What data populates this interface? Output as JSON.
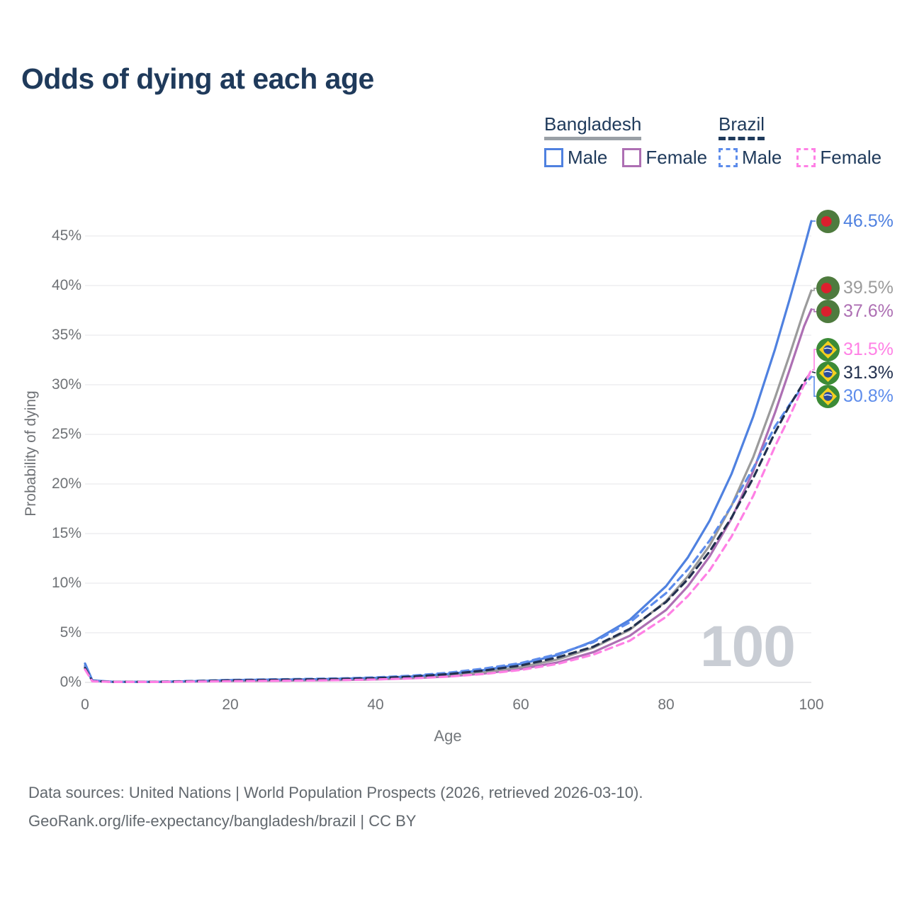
{
  "title": "Odds of dying at each age",
  "legend": {
    "groups": [
      {
        "label": "Bangladesh",
        "line_style": "solid",
        "underline_color": "#9aa0a6",
        "items": [
          {
            "label": "Male",
            "color": "#4f81e0",
            "dashed": false
          },
          {
            "label": "Female",
            "color": "#ad6fb3",
            "dashed": false
          }
        ]
      },
      {
        "label": "Brazil",
        "line_style": "dashed",
        "underline_color": "#1f3a5b",
        "items": [
          {
            "label": "Male",
            "color": "#5d8ceb",
            "dashed": true
          },
          {
            "label": "Female",
            "color": "#ff80e5",
            "dashed": true
          }
        ]
      }
    ]
  },
  "chart_data": {
    "type": "line",
    "title": "Odds of dying at each age",
    "xlabel": "Age",
    "ylabel": "Probability of dying",
    "xlim": [
      0,
      100
    ],
    "ylim": [
      0,
      45
    ],
    "grid": true,
    "legend_position": "top-right",
    "watermark": "100",
    "x_ticks": [
      {
        "value": 0,
        "label": "0"
      },
      {
        "value": 20,
        "label": "20"
      },
      {
        "value": 40,
        "label": "40"
      },
      {
        "value": 60,
        "label": "60"
      },
      {
        "value": 80,
        "label": "80"
      },
      {
        "value": 100,
        "label": "100"
      }
    ],
    "y_ticks": [
      {
        "value": 0,
        "label": "0%"
      },
      {
        "value": 5,
        "label": "5%"
      },
      {
        "value": 10,
        "label": "10%"
      },
      {
        "value": 15,
        "label": "15%"
      },
      {
        "value": 20,
        "label": "20%"
      },
      {
        "value": 25,
        "label": "25%"
      },
      {
        "value": 30,
        "label": "30%"
      },
      {
        "value": 35,
        "label": "35%"
      },
      {
        "value": 40,
        "label": "40%"
      },
      {
        "value": 45,
        "label": "45%"
      }
    ],
    "x": [
      0,
      1,
      4,
      10,
      15,
      20,
      25,
      30,
      35,
      40,
      45,
      50,
      55,
      60,
      65,
      70,
      75,
      80,
      83,
      86,
      89,
      92,
      95,
      97,
      99,
      100
    ],
    "series": [
      {
        "id": "bd-female",
        "name": "Bangladesh Female",
        "country": "Bangladesh",
        "flag": "bd",
        "color": "#ad6fb3",
        "dashed": false,
        "end_label": "37.6%",
        "values": [
          1.55,
          0.15,
          0.04,
          0.04,
          0.08,
          0.13,
          0.16,
          0.19,
          0.23,
          0.3,
          0.42,
          0.6,
          0.9,
          1.35,
          2.0,
          3.05,
          4.7,
          7.3,
          9.7,
          12.7,
          16.5,
          21.3,
          27.2,
          31.5,
          35.9,
          37.6
        ]
      },
      {
        "id": "bd-all",
        "name": "Bangladesh",
        "country": "Bangladesh",
        "flag": "bd",
        "color": "#9b9b9b",
        "dashed": false,
        "end_label": "39.5%",
        "values": [
          1.7,
          0.17,
          0.05,
          0.05,
          0.1,
          0.18,
          0.22,
          0.25,
          0.3,
          0.38,
          0.5,
          0.72,
          1.05,
          1.55,
          2.3,
          3.5,
          5.3,
          8.2,
          10.7,
          13.8,
          17.8,
          22.7,
          28.7,
          33.0,
          37.5,
          39.5
        ]
      },
      {
        "id": "bd-male",
        "name": "Bangladesh Male",
        "country": "Bangladesh",
        "flag": "bd",
        "color": "#4f81e0",
        "dashed": false,
        "end_label": "46.5%",
        "values": [
          1.9,
          0.2,
          0.06,
          0.06,
          0.12,
          0.22,
          0.27,
          0.3,
          0.36,
          0.45,
          0.6,
          0.85,
          1.25,
          1.85,
          2.75,
          4.15,
          6.3,
          9.7,
          12.6,
          16.3,
          21.0,
          26.8,
          33.6,
          38.6,
          43.8,
          46.5
        ]
      },
      {
        "id": "br-male",
        "name": "Brazil Male",
        "country": "Brazil",
        "flag": "br",
        "color": "#5d8ceb",
        "dashed": true,
        "end_label": "30.8%",
        "values": [
          1.6,
          0.15,
          0.06,
          0.07,
          0.14,
          0.25,
          0.3,
          0.34,
          0.4,
          0.5,
          0.68,
          0.97,
          1.4,
          1.95,
          2.85,
          4.05,
          6.05,
          9.0,
          11.4,
          14.3,
          17.8,
          21.6,
          25.8,
          28.0,
          30.0,
          30.8
        ]
      },
      {
        "id": "br-all",
        "name": "Brazil",
        "country": "Brazil",
        "flag": "br",
        "color": "#22304e",
        "dashed": true,
        "end_label": "31.3%",
        "values": [
          1.45,
          0.13,
          0.05,
          0.06,
          0.12,
          0.2,
          0.25,
          0.29,
          0.34,
          0.43,
          0.58,
          0.83,
          1.2,
          1.7,
          2.5,
          3.6,
          5.4,
          8.1,
          10.4,
          13.2,
          16.6,
          20.6,
          25.2,
          27.9,
          30.3,
          31.3
        ]
      },
      {
        "id": "br-female",
        "name": "Brazil Female",
        "country": "Brazil",
        "flag": "br",
        "color": "#ff80e5",
        "dashed": true,
        "end_label": "31.5%",
        "values": [
          1.3,
          0.11,
          0.04,
          0.04,
          0.08,
          0.12,
          0.15,
          0.18,
          0.22,
          0.29,
          0.4,
          0.58,
          0.85,
          1.25,
          1.85,
          2.8,
          4.2,
          6.6,
          8.7,
          11.3,
          14.7,
          18.8,
          23.8,
          26.8,
          30.0,
          31.5
        ]
      }
    ]
  },
  "footer": {
    "line1": "Data sources: United Nations | World Population Prospects (2026, retrieved 2026-03-10).",
    "line2": "GeoRank.org/life-expectancy/bangladesh/brazil | CC BY"
  }
}
